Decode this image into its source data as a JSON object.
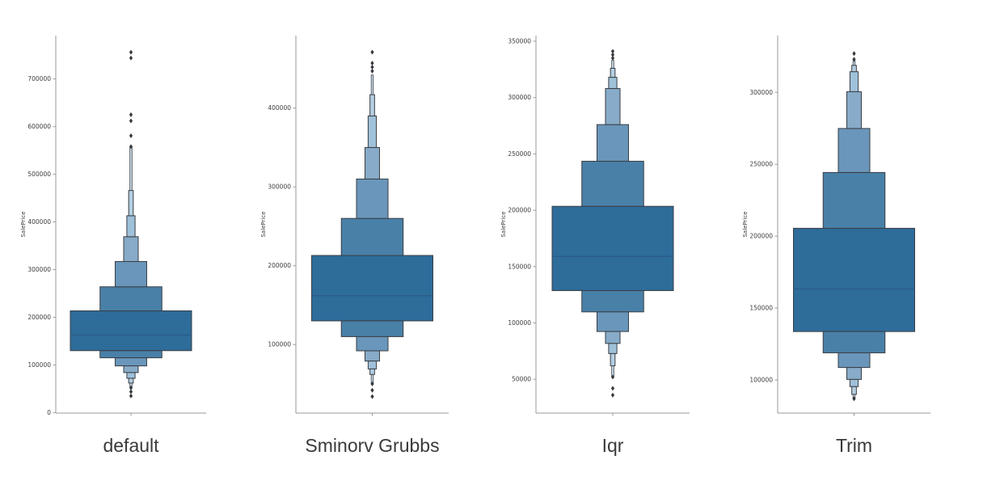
{
  "figure": {
    "background": "#ffffff",
    "description": "Four seaborn-style boxen (letter-value) plots of SalePrice under different outlier-removal methods"
  },
  "chart_data": {
    "type": "boxen",
    "ylabel": "SalePrice",
    "legend": null,
    "grid": false,
    "style": {
      "level_colors": [
        "#2e6c9a",
        "#4980a8",
        "#6996ba",
        "#87abc8",
        "#9fc1d9",
        "#b4cfe2"
      ],
      "stem_fill": "#c9dbe9",
      "box_stroke": "#3a3e44",
      "median_color": "#2a5c84",
      "axis_color": "#9a9a9a",
      "tick_label_color": "#3d3d3d",
      "outlier_color": "#35383c",
      "outlier_marker": "diamond",
      "title_color": "#3a3a3a"
    },
    "plots": [
      {
        "title": "default",
        "ylabel": "SalePrice",
        "ylim": [
          -1000,
          791000
        ],
        "yticks": [
          0,
          100000,
          200000,
          300000,
          400000,
          500000,
          600000,
          700000
        ],
        "median": 163000,
        "boxes": [
          {
            "lo": 130000,
            "hi": 213500,
            "f": 1.0,
            "c": 0
          },
          {
            "lo": 213500,
            "hi": 264000,
            "f": 0.51,
            "c": 1
          },
          {
            "lo": 115000,
            "hi": 130000,
            "f": 0.51,
            "c": 1
          },
          {
            "lo": 264000,
            "hi": 317000,
            "f": 0.26,
            "c": 2
          },
          {
            "lo": 98000,
            "hi": 115000,
            "f": 0.26,
            "c": 2
          },
          {
            "lo": 317000,
            "hi": 369000,
            "f": 0.12,
            "c": 3
          },
          {
            "lo": 84000,
            "hi": 98000,
            "f": 0.12,
            "c": 3
          },
          {
            "lo": 369000,
            "hi": 413000,
            "f": 0.068,
            "c": 4
          },
          {
            "lo": 72000,
            "hi": 84000,
            "f": 0.068,
            "c": 4
          },
          {
            "lo": 413000,
            "hi": 466000,
            "f": 0.038,
            "c": 5
          },
          {
            "lo": 62000,
            "hi": 72000,
            "f": 0.038,
            "c": 5
          }
        ],
        "stems": [
          {
            "lo": 466000,
            "hi": 556000
          },
          {
            "lo": 52000,
            "hi": 62000
          }
        ],
        "outliers": [
          756000,
          744000,
          625000,
          612000,
          581000,
          558000,
          52000,
          44000,
          35000
        ]
      },
      {
        "title": "Sminorv Grubbs",
        "ylabel": "SalePrice",
        "ylim": [
          13000,
          492000
        ],
        "yticks": [
          100000,
          200000,
          300000,
          400000
        ],
        "median": 162000,
        "boxes": [
          {
            "lo": 130000,
            "hi": 213000,
            "f": 1.0,
            "c": 0
          },
          {
            "lo": 213000,
            "hi": 260000,
            "f": 0.51,
            "c": 1
          },
          {
            "lo": 110000,
            "hi": 130000,
            "f": 0.51,
            "c": 1
          },
          {
            "lo": 260000,
            "hi": 310000,
            "f": 0.26,
            "c": 2
          },
          {
            "lo": 92000,
            "hi": 110000,
            "f": 0.26,
            "c": 2
          },
          {
            "lo": 310000,
            "hi": 350000,
            "f": 0.12,
            "c": 3
          },
          {
            "lo": 79000,
            "hi": 92000,
            "f": 0.12,
            "c": 3
          },
          {
            "lo": 350000,
            "hi": 390000,
            "f": 0.068,
            "c": 4
          },
          {
            "lo": 69000,
            "hi": 79000,
            "f": 0.068,
            "c": 4
          },
          {
            "lo": 390000,
            "hi": 417000,
            "f": 0.038,
            "c": 5
          },
          {
            "lo": 62000,
            "hi": 69000,
            "f": 0.038,
            "c": 5
          }
        ],
        "stems": [
          {
            "lo": 417000,
            "hi": 442000
          },
          {
            "lo": 50000,
            "hi": 62000
          }
        ],
        "outliers": [
          471000,
          457000,
          452000,
          447000,
          50000,
          42000,
          34000
        ]
      },
      {
        "title": "Iqr",
        "ylabel": "SalePrice",
        "ylim": [
          20000,
          355000
        ],
        "yticks": [
          50000,
          100000,
          150000,
          200000,
          250000,
          300000,
          350000
        ],
        "median": 159000,
        "boxes": [
          {
            "lo": 128700,
            "hi": 203500,
            "f": 1.0,
            "c": 0
          },
          {
            "lo": 203500,
            "hi": 243500,
            "f": 0.51,
            "c": 1
          },
          {
            "lo": 109800,
            "hi": 128700,
            "f": 0.51,
            "c": 1
          },
          {
            "lo": 243500,
            "hi": 276000,
            "f": 0.26,
            "c": 2
          },
          {
            "lo": 92400,
            "hi": 109800,
            "f": 0.26,
            "c": 2
          },
          {
            "lo": 276000,
            "hi": 308000,
            "f": 0.12,
            "c": 3
          },
          {
            "lo": 81800,
            "hi": 92400,
            "f": 0.12,
            "c": 3
          },
          {
            "lo": 308000,
            "hi": 318000,
            "f": 0.068,
            "c": 4
          },
          {
            "lo": 72800,
            "hi": 81800,
            "f": 0.068,
            "c": 4
          },
          {
            "lo": 318000,
            "hi": 326000,
            "f": 0.038,
            "c": 5
          },
          {
            "lo": 62000,
            "hi": 72800,
            "f": 0.038,
            "c": 5
          }
        ],
        "stems": [
          {
            "lo": 326000,
            "hi": 333000
          },
          {
            "lo": 52000,
            "hi": 62000
          }
        ],
        "outliers": [
          341000,
          338000,
          335000,
          52000,
          42000,
          36000
        ]
      },
      {
        "title": "Trim",
        "ylabel": "SalePrice",
        "ylim": [
          77000,
          339500
        ],
        "yticks": [
          100000,
          150000,
          200000,
          250000,
          300000
        ],
        "median": 163400,
        "boxes": [
          {
            "lo": 133700,
            "hi": 205500,
            "f": 1.0,
            "c": 0
          },
          {
            "lo": 205500,
            "hi": 244300,
            "f": 0.51,
            "c": 1
          },
          {
            "lo": 118900,
            "hi": 133700,
            "f": 0.51,
            "c": 1
          },
          {
            "lo": 244300,
            "hi": 274900,
            "f": 0.26,
            "c": 2
          },
          {
            "lo": 108700,
            "hi": 118900,
            "f": 0.26,
            "c": 2
          },
          {
            "lo": 274900,
            "hi": 300500,
            "f": 0.12,
            "c": 3
          },
          {
            "lo": 100400,
            "hi": 108700,
            "f": 0.12,
            "c": 3
          },
          {
            "lo": 300500,
            "hi": 314400,
            "f": 0.068,
            "c": 4
          },
          {
            "lo": 95400,
            "hi": 100400,
            "f": 0.068,
            "c": 4
          },
          {
            "lo": 314400,
            "hi": 318800,
            "f": 0.038,
            "c": 5
          },
          {
            "lo": 90000,
            "hi": 95400,
            "f": 0.038,
            "c": 5
          }
        ],
        "stems": [
          {
            "lo": 318800,
            "hi": 322000
          },
          {
            "lo": 87500,
            "hi": 90000
          }
        ],
        "outliers": [
          327000,
          323000,
          87000
        ]
      }
    ]
  }
}
